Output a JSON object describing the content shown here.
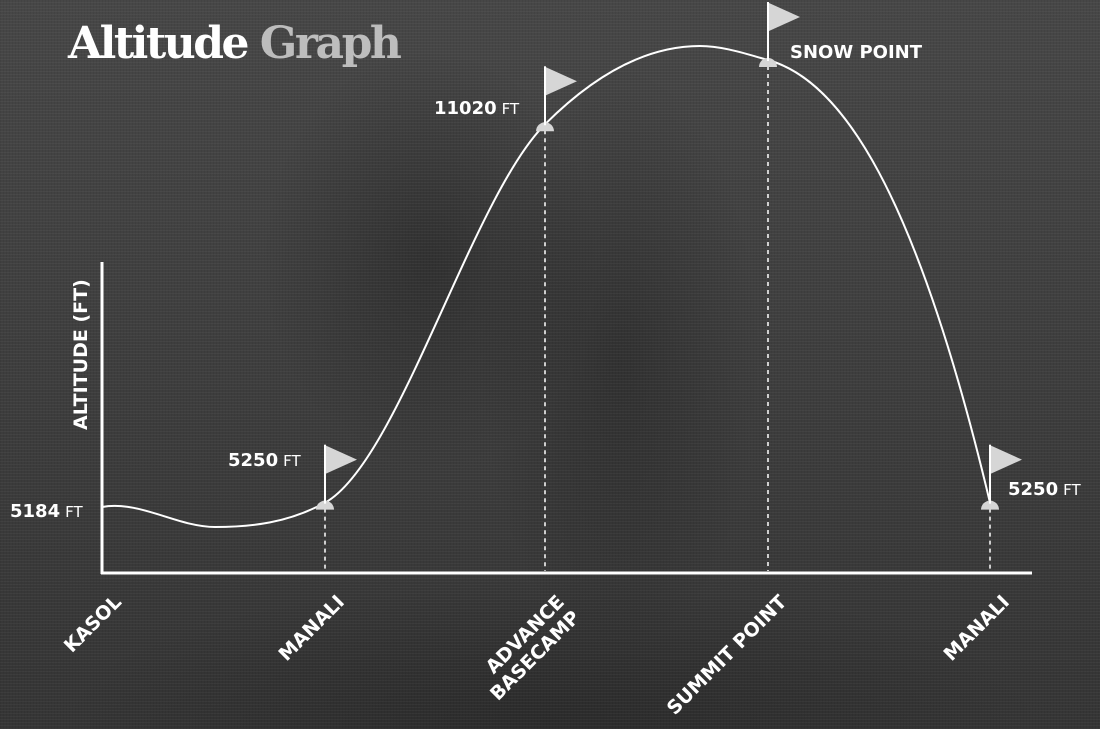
{
  "title": {
    "part1": "Altitude",
    "part2": "Graph"
  },
  "chart_data": {
    "type": "line",
    "title": "Altitude Graph",
    "xlabel": "",
    "ylabel": "ALTITUDE (FT)",
    "unit": "FT",
    "categories": [
      "KASOL",
      "MANALI",
      "ADVANCE\nBASECAMP",
      "SUMMIT POINT",
      "MANALI"
    ],
    "points": [
      {
        "location": "KASOL",
        "altitude": 5184,
        "label": "5184",
        "flag": false
      },
      {
        "location": "MANALI",
        "altitude": 5250,
        "label": "5250",
        "flag": true
      },
      {
        "location": "ADVANCE BASECAMP",
        "altitude": 11020,
        "label": "11020",
        "flag": true
      },
      {
        "location": "SUMMIT POINT",
        "altitude": 12000,
        "label": "SNOW POINT",
        "flag": true
      },
      {
        "location": "MANALI",
        "altitude": 5250,
        "label": "5250",
        "flag": true
      }
    ],
    "grid": false,
    "legend": "none"
  },
  "colors": {
    "line": "#ffffff",
    "flag": "#d6d6d6",
    "guide": "#ffffff"
  }
}
